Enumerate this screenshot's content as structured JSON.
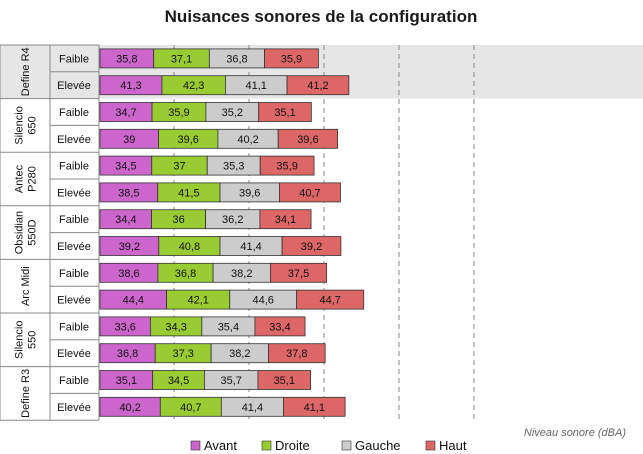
{
  "chart_data": {
    "type": "bar",
    "orientation": "horizontal",
    "stacked": true,
    "title": "Nuisances sonores de la configuration",
    "unit_label": "Niveau sonore (dBA)",
    "groups": [
      "Define R4",
      "Silencio 650",
      "Antec P280",
      "Obsidian 550D",
      "Arc Midi",
      "Silencio 550",
      "Define R3"
    ],
    "group_lines": [
      [
        "Define R4"
      ],
      [
        "Silencio",
        "650"
      ],
      [
        "Antec",
        "P280"
      ],
      [
        "Obsidian",
        "550D"
      ],
      [
        "Arc Midi"
      ],
      [
        "Silencio",
        "550"
      ],
      [
        "Define R3"
      ]
    ],
    "levels": [
      "Faible",
      "Elevée"
    ],
    "series": [
      {
        "name": "Avant",
        "color": "#cc66cc",
        "values": [
          [
            35.8,
            41.3
          ],
          [
            34.7,
            39
          ],
          [
            34.5,
            38.5
          ],
          [
            34.4,
            39.2
          ],
          [
            38.6,
            44.4
          ],
          [
            33.6,
            36.8
          ],
          [
            35.1,
            40.2
          ]
        ]
      },
      {
        "name": "Droite",
        "color": "#99cc33",
        "values": [
          [
            37.1,
            42.3
          ],
          [
            35.9,
            39.6
          ],
          [
            37,
            41.5
          ],
          [
            36,
            40.8
          ],
          [
            36.8,
            42.1
          ],
          [
            34.3,
            37.3
          ],
          [
            34.5,
            40.7
          ]
        ]
      },
      {
        "name": "Gauche",
        "color": "#cccccc",
        "values": [
          [
            36.8,
            41.1
          ],
          [
            35.2,
            40.2
          ],
          [
            35.3,
            39.6
          ],
          [
            36.2,
            41.4
          ],
          [
            38.2,
            44.6
          ],
          [
            35.4,
            38.2
          ],
          [
            35.7,
            41.4
          ]
        ]
      },
      {
        "name": "Haut",
        "color": "#dd6666",
        "values": [
          [
            35.9,
            41.2
          ],
          [
            35.1,
            39.6
          ],
          [
            35.9,
            40.7
          ],
          [
            34.1,
            39.2
          ],
          [
            37.5,
            44.7
          ],
          [
            33.4,
            37.8
          ],
          [
            35.1,
            41.1
          ]
        ]
      }
    ],
    "value_labels": [
      [
        [
          "35,8",
          "37,1",
          "36,8",
          "35,9"
        ],
        [
          "41,3",
          "42,3",
          "41,1",
          "41,2"
        ]
      ],
      [
        [
          "34,7",
          "35,9",
          "35,2",
          "35,1"
        ],
        [
          "39",
          "39,6",
          "40,2",
          "39,6"
        ]
      ],
      [
        [
          "34,5",
          "37",
          "35,3",
          "35,9"
        ],
        [
          "38,5",
          "41,5",
          "39,6",
          "40,7"
        ]
      ],
      [
        [
          "34,4",
          "36",
          "36,2",
          "34,1"
        ],
        [
          "39,2",
          "40,8",
          "41,4",
          "39,2"
        ]
      ],
      [
        [
          "38,6",
          "36,8",
          "38,2",
          "37,5"
        ],
        [
          "44,4",
          "42,1",
          "44,6",
          "44,7"
        ]
      ],
      [
        [
          "33,6",
          "34,3",
          "35,4",
          "33,4"
        ],
        [
          "36,8",
          "37,3",
          "38,2",
          "37,8"
        ]
      ],
      [
        [
          "35,1",
          "34,5",
          "35,7",
          "35,1"
        ],
        [
          "40,2",
          "40,7",
          "41,4",
          "41,1"
        ]
      ]
    ],
    "xlim": [
      0,
      300
    ],
    "grid": true,
    "legend_position": "bottom",
    "highlighted_group": "Define R4"
  }
}
